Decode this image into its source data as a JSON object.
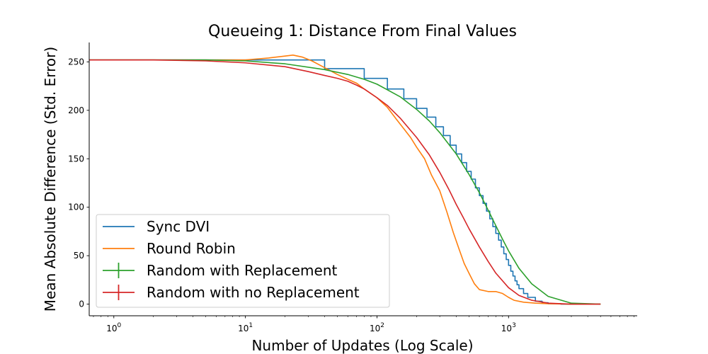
{
  "chart_data": {
    "type": "line",
    "title": "Queueing 1: Distance From Final Values",
    "xlabel": "Number of Updates (Log Scale)",
    "ylabel": "Mean Absolute Difference (Std. Error)",
    "xscale": "log",
    "xlim": [
      0.65,
      9500
    ],
    "ylim": [
      -12,
      270
    ],
    "xticks": [
      {
        "value": 1,
        "base": "10",
        "exp": "0"
      },
      {
        "value": 10,
        "base": "10",
        "exp": "1"
      },
      {
        "value": 100,
        "base": "10",
        "exp": "2"
      },
      {
        "value": 1000,
        "base": "10",
        "exp": "3"
      }
    ],
    "yticks": [
      {
        "value": 0,
        "label": "0"
      },
      {
        "value": 50,
        "label": "50"
      },
      {
        "value": 100,
        "label": "100"
      },
      {
        "value": 150,
        "label": "150"
      },
      {
        "value": 200,
        "label": "200"
      },
      {
        "value": 250,
        "label": "250"
      }
    ],
    "grid": false,
    "legend_position": "bottom-left",
    "series": [
      {
        "name": "Sync DVI",
        "color": "#1f77b4",
        "style": "step",
        "x": [
          0.65,
          40,
          80,
          120,
          160,
          200,
          240,
          280,
          320,
          360,
          400,
          440,
          480,
          520,
          560,
          600,
          640,
          680,
          720,
          760,
          800,
          840,
          880,
          920,
          960,
          1000,
          1040,
          1080,
          1120,
          1160,
          1200,
          1300,
          1400,
          1600,
          1800,
          2000,
          2500,
          3000,
          5000
        ],
        "y": [
          252,
          243,
          233,
          222,
          212,
          202,
          193,
          183,
          174,
          164,
          155,
          146,
          137,
          129,
          120,
          112,
          104,
          96,
          88,
          80,
          73,
          66,
          59,
          52,
          46,
          40,
          34,
          29,
          24,
          20,
          16,
          11,
          7,
          3,
          1.5,
          0.5,
          0,
          0,
          0
        ]
      },
      {
        "name": "Round Robin",
        "color": "#ff7f0e",
        "style": "line",
        "x": [
          0.65,
          1,
          2,
          5,
          10,
          15,
          20,
          23,
          27,
          32,
          40,
          50,
          60,
          70,
          80,
          100,
          120,
          140,
          160,
          180,
          200,
          230,
          260,
          300,
          340,
          380,
          420,
          460,
          500,
          550,
          600,
          700,
          800,
          900,
          1000,
          1100,
          1300,
          1600,
          2000,
          3000,
          5000
        ],
        "y": [
          252,
          252,
          252,
          252,
          252,
          254,
          256,
          257,
          255,
          251,
          244,
          237,
          232,
          228,
          222,
          213,
          203,
          191,
          181,
          172,
          162,
          150,
          133,
          117,
          95,
          74,
          57,
          42,
          32,
          21,
          15,
          13,
          13,
          11,
          7,
          4,
          2,
          1,
          0.5,
          0,
          0
        ]
      },
      {
        "name": "Random with Replacement",
        "color": "#2ca02c",
        "style": "line",
        "x": [
          0.65,
          1,
          2,
          5,
          10,
          20,
          40,
          60,
          80,
          100,
          150,
          200,
          250,
          300,
          400,
          500,
          600,
          700,
          800,
          900,
          1000,
          1200,
          1500,
          2000,
          3000,
          5000
        ],
        "y": [
          252,
          252,
          252,
          252,
          251,
          248,
          242,
          237,
          232,
          227,
          214,
          201,
          189,
          177,
          155,
          134,
          115,
          97,
          81,
          67,
          55,
          37,
          21,
          8,
          1,
          0
        ]
      },
      {
        "name": "Random with no Replacement",
        "color": "#d62728",
        "style": "line",
        "x": [
          0.65,
          1,
          2,
          5,
          10,
          20,
          30,
          40,
          50,
          60,
          70,
          80,
          100,
          120,
          150,
          200,
          250,
          300,
          350,
          400,
          450,
          500,
          600,
          700,
          800,
          1000,
          1200,
          1500,
          2000,
          3000,
          5000
        ],
        "y": [
          252,
          252,
          252,
          251,
          249,
          245,
          240,
          236,
          233,
          230,
          226,
          222,
          213,
          205,
          192,
          172,
          154,
          136,
          119,
          103,
          90,
          78,
          59,
          44,
          32,
          17,
          9,
          4,
          1,
          0,
          0
        ]
      }
    ]
  }
}
